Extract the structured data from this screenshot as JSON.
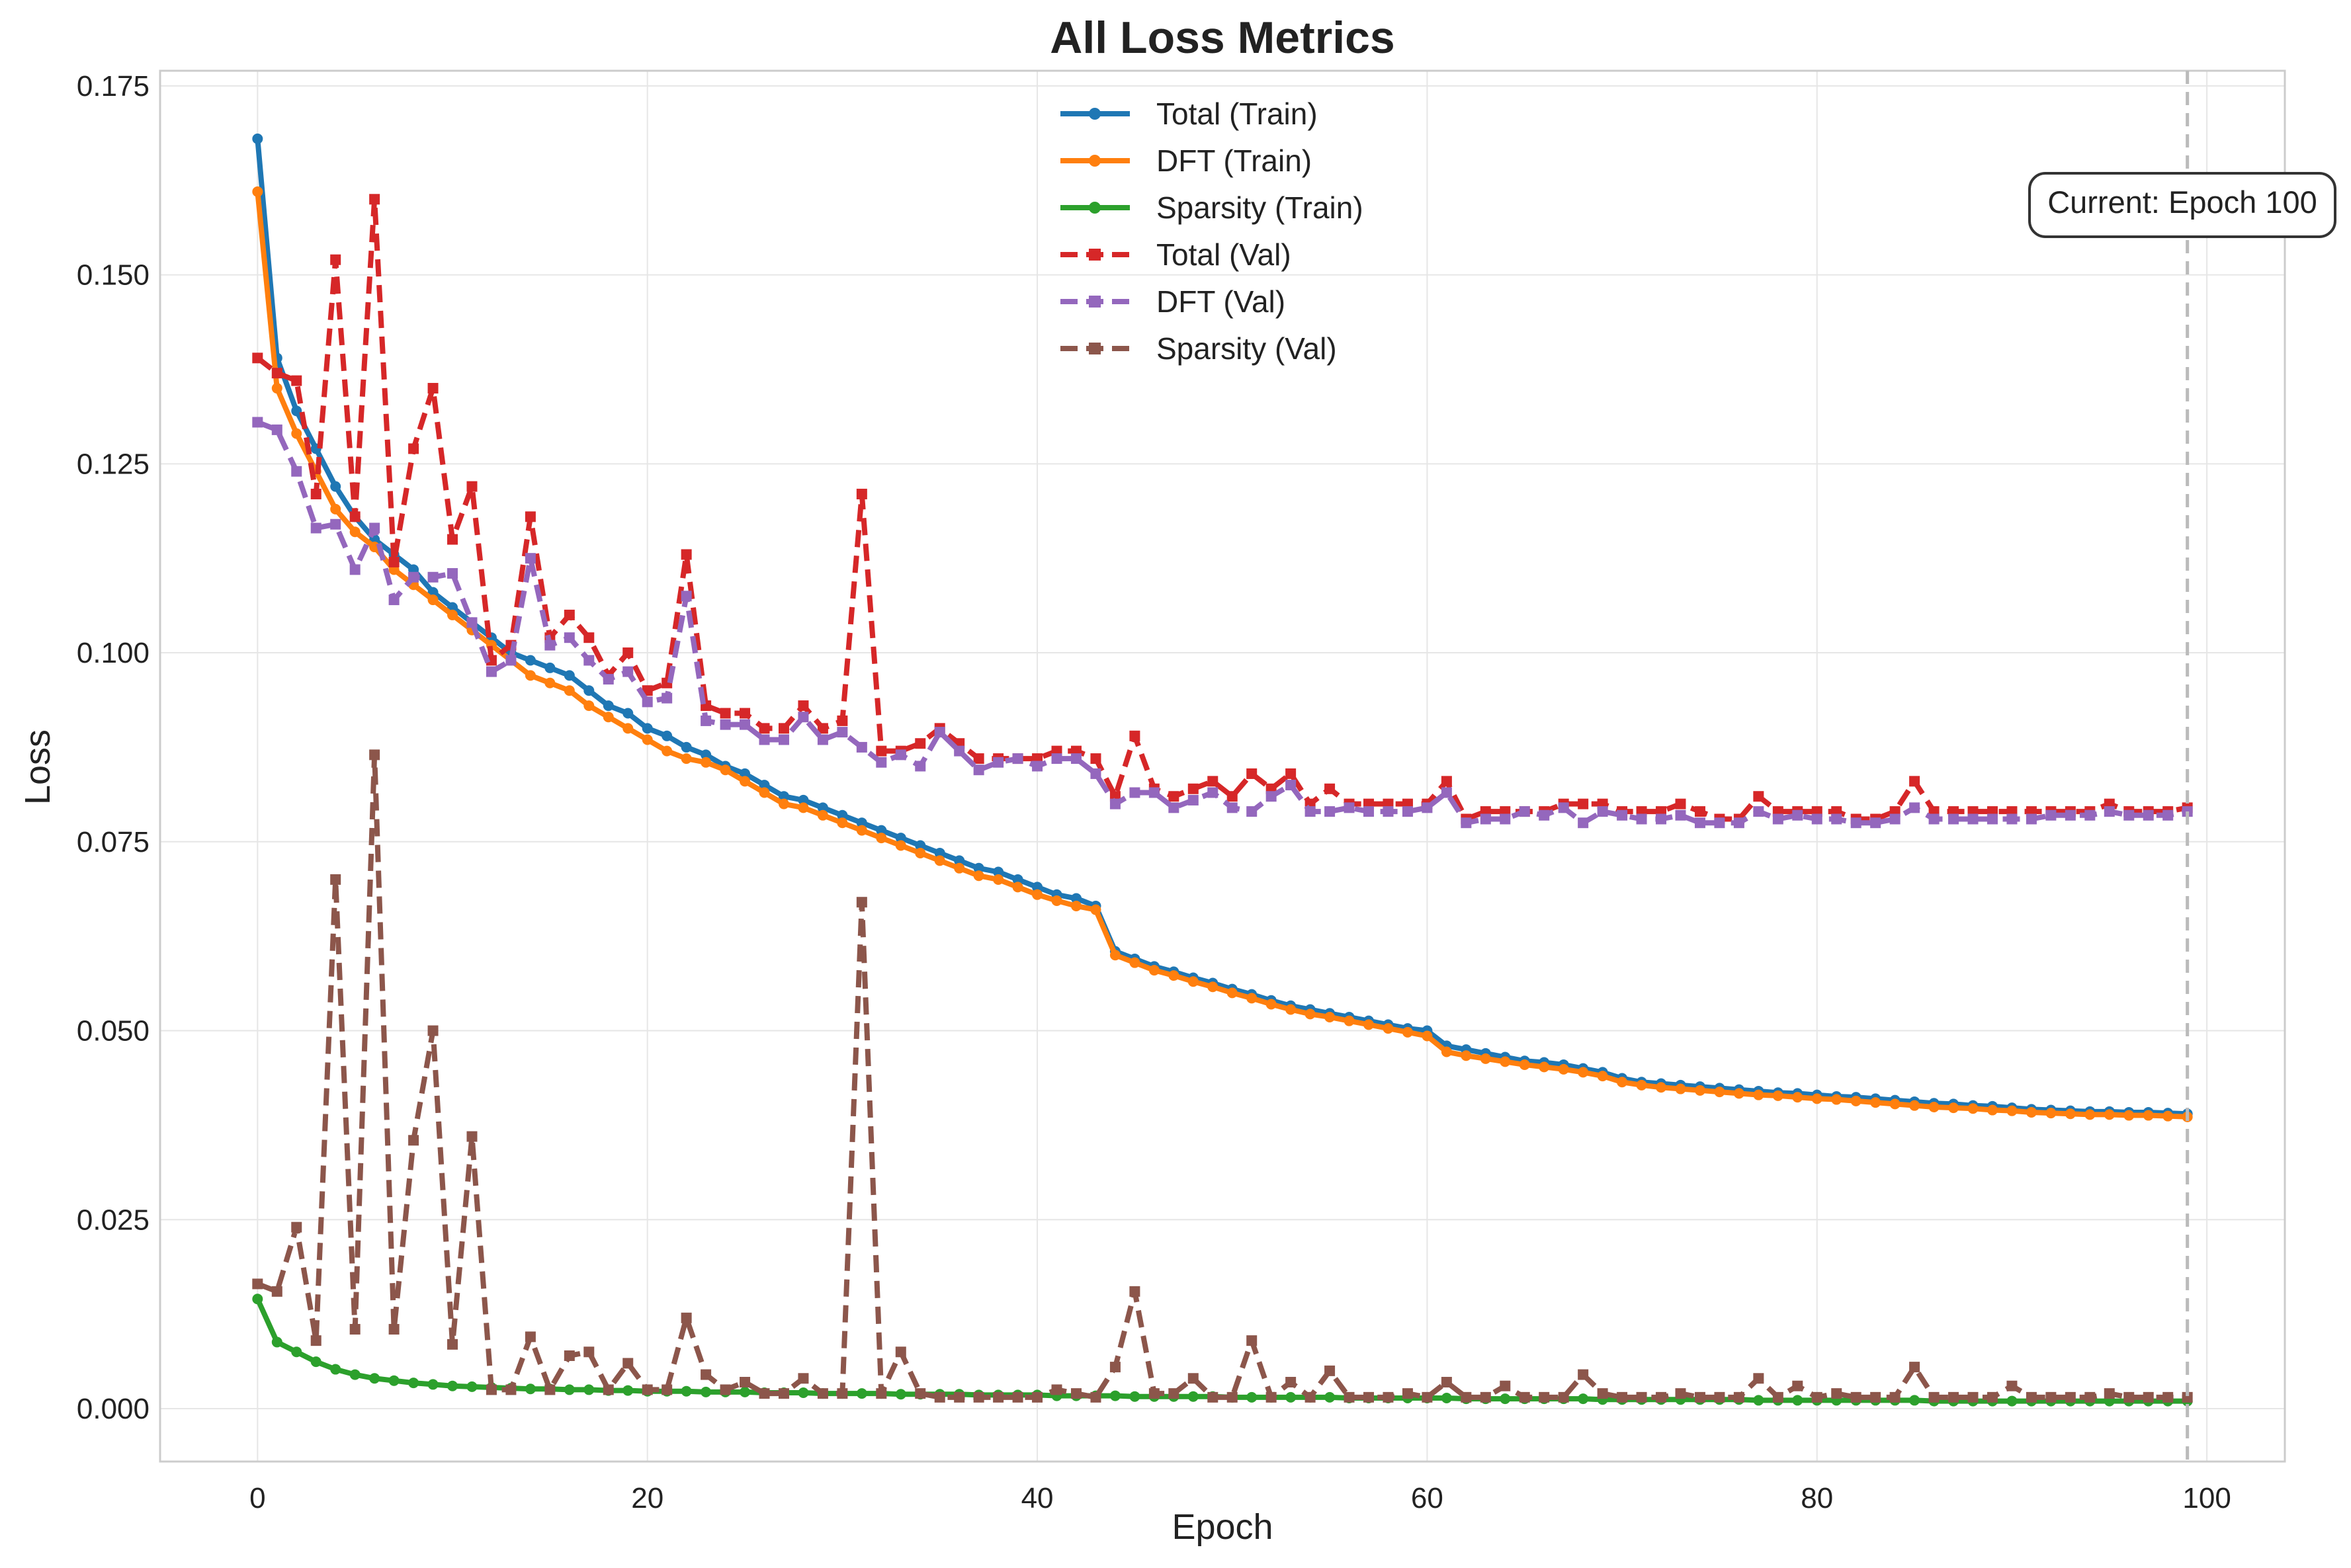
{
  "chart_data": {
    "type": "line",
    "title": "All Loss Metrics",
    "xlabel": "Epoch",
    "ylabel": "Loss",
    "xlim": [
      -5,
      104
    ],
    "ylim": [
      -0.007,
      0.177
    ],
    "xticks": [
      0,
      20,
      40,
      60,
      80,
      100
    ],
    "yticks": [
      0.0,
      0.025,
      0.05,
      0.075,
      0.1,
      0.125,
      0.15,
      0.175
    ],
    "xtick_labels": [
      "0",
      "20",
      "40",
      "60",
      "80",
      "100"
    ],
    "ytick_labels": [
      "0.000",
      "0.025",
      "0.050",
      "0.075",
      "0.100",
      "0.125",
      "0.150",
      "0.175"
    ],
    "grid": true,
    "legend_position": "top-center",
    "current_epoch_line": 99,
    "annotation": "Current: Epoch 100",
    "series": [
      {
        "name": "Total (Train)",
        "color": "#1f77b4",
        "style": "solid",
        "marker": "circle",
        "values": [
          0.168,
          0.139,
          0.132,
          0.127,
          0.122,
          0.118,
          0.115,
          0.113,
          0.111,
          0.108,
          0.106,
          0.104,
          0.102,
          0.1,
          0.099,
          0.098,
          0.097,
          0.095,
          0.093,
          0.092,
          0.09,
          0.089,
          0.0875,
          0.0865,
          0.085,
          0.084,
          0.0825,
          0.081,
          0.0805,
          0.0795,
          0.0785,
          0.0775,
          0.0765,
          0.0755,
          0.0745,
          0.0735,
          0.0725,
          0.0715,
          0.071,
          0.07,
          0.069,
          0.068,
          0.0675,
          0.0665,
          0.0605,
          0.0595,
          0.0585,
          0.0578,
          0.057,
          0.0563,
          0.0555,
          0.0548,
          0.054,
          0.0533,
          0.0528,
          0.0523,
          0.0518,
          0.0513,
          0.0508,
          0.0503,
          0.05,
          0.048,
          0.0475,
          0.047,
          0.0465,
          0.046,
          0.0458,
          0.0455,
          0.045,
          0.0445,
          0.0437,
          0.0432,
          0.043,
          0.0428,
          0.0426,
          0.0424,
          0.0422,
          0.042,
          0.0418,
          0.0417,
          0.0415,
          0.0413,
          0.0412,
          0.041,
          0.0408,
          0.0406,
          0.0404,
          0.0403,
          0.0401,
          0.04,
          0.0398,
          0.0396,
          0.0395,
          0.0394,
          0.0393,
          0.0393,
          0.0392,
          0.0392,
          0.0391,
          0.039
        ]
      },
      {
        "name": "DFT (Train)",
        "color": "#ff7f0e",
        "style": "solid",
        "marker": "circle",
        "values": [
          0.161,
          0.135,
          0.129,
          0.124,
          0.119,
          0.116,
          0.114,
          0.111,
          0.109,
          0.107,
          0.105,
          0.103,
          0.101,
          0.099,
          0.097,
          0.096,
          0.095,
          0.093,
          0.0915,
          0.09,
          0.0885,
          0.087,
          0.086,
          0.0855,
          0.0845,
          0.083,
          0.0815,
          0.08,
          0.0795,
          0.0785,
          0.0775,
          0.0765,
          0.0755,
          0.0745,
          0.0735,
          0.0725,
          0.0715,
          0.0705,
          0.07,
          0.069,
          0.068,
          0.0672,
          0.0665,
          0.066,
          0.06,
          0.059,
          0.058,
          0.0573,
          0.0565,
          0.0558,
          0.055,
          0.0543,
          0.0535,
          0.0528,
          0.0522,
          0.0518,
          0.0513,
          0.0508,
          0.0503,
          0.0498,
          0.0493,
          0.0472,
          0.0467,
          0.0463,
          0.0459,
          0.0455,
          0.0452,
          0.0449,
          0.0445,
          0.044,
          0.0432,
          0.0428,
          0.0425,
          0.0423,
          0.0421,
          0.0419,
          0.0417,
          0.0415,
          0.0414,
          0.0412,
          0.041,
          0.0409,
          0.0407,
          0.0405,
          0.0403,
          0.0401,
          0.0399,
          0.0398,
          0.0397,
          0.0395,
          0.0394,
          0.0392,
          0.0391,
          0.039,
          0.0389,
          0.0389,
          0.0388,
          0.0388,
          0.0387,
          0.0386
        ]
      },
      {
        "name": "Sparsity (Train)",
        "color": "#2ca02c",
        "style": "solid",
        "marker": "circle",
        "values": [
          0.0145,
          0.0088,
          0.0075,
          0.0062,
          0.0052,
          0.0045,
          0.004,
          0.0037,
          0.0034,
          0.0032,
          0.003,
          0.0029,
          0.0028,
          0.0027,
          0.0026,
          0.0026,
          0.0025,
          0.0025,
          0.0024,
          0.0024,
          0.0023,
          0.0023,
          0.0023,
          0.0022,
          0.0022,
          0.0022,
          0.0021,
          0.0021,
          0.0021,
          0.002,
          0.002,
          0.002,
          0.002,
          0.0019,
          0.0019,
          0.0019,
          0.0019,
          0.0018,
          0.0018,
          0.0018,
          0.0018,
          0.0017,
          0.0017,
          0.0017,
          0.0017,
          0.0016,
          0.0016,
          0.0016,
          0.0016,
          0.0016,
          0.0015,
          0.0015,
          0.0015,
          0.0015,
          0.0015,
          0.0015,
          0.0014,
          0.0014,
          0.0014,
          0.0014,
          0.0014,
          0.0014,
          0.0013,
          0.0013,
          0.0013,
          0.0013,
          0.0013,
          0.0013,
          0.0013,
          0.0012,
          0.0012,
          0.0012,
          0.0012,
          0.0012,
          0.0012,
          0.0012,
          0.0012,
          0.0011,
          0.0011,
          0.0011,
          0.0011,
          0.0011,
          0.0011,
          0.0011,
          0.0011,
          0.0011,
          0.001,
          0.001,
          0.001,
          0.001,
          0.001,
          0.001,
          0.001,
          0.001,
          0.001,
          0.001,
          0.001,
          0.001,
          0.001,
          0.001
        ]
      },
      {
        "name": "Total (Val)",
        "color": "#d62728",
        "style": "dashed",
        "marker": "square",
        "values": [
          0.139,
          0.137,
          0.136,
          0.121,
          0.152,
          0.118,
          0.16,
          0.112,
          0.127,
          0.135,
          0.115,
          0.122,
          0.099,
          0.101,
          0.118,
          0.102,
          0.105,
          0.102,
          0.097,
          0.1,
          0.095,
          0.096,
          0.113,
          0.093,
          0.092,
          0.092,
          0.09,
          0.09,
          0.093,
          0.09,
          0.091,
          0.121,
          0.087,
          0.087,
          0.088,
          0.09,
          0.088,
          0.086,
          0.086,
          0.086,
          0.086,
          0.087,
          0.087,
          0.086,
          0.081,
          0.089,
          0.082,
          0.081,
          0.082,
          0.083,
          0.081,
          0.084,
          0.082,
          0.084,
          0.08,
          0.082,
          0.08,
          0.08,
          0.08,
          0.08,
          0.08,
          0.083,
          0.078,
          0.079,
          0.079,
          0.079,
          0.079,
          0.08,
          0.08,
          0.08,
          0.079,
          0.079,
          0.079,
          0.08,
          0.079,
          0.078,
          0.078,
          0.081,
          0.079,
          0.079,
          0.079,
          0.079,
          0.078,
          0.078,
          0.079,
          0.083,
          0.079,
          0.079,
          0.079,
          0.079,
          0.079,
          0.079,
          0.079,
          0.079,
          0.079,
          0.08,
          0.079,
          0.079,
          0.079,
          0.0795
        ]
      },
      {
        "name": "DFT (Val)",
        "color": "#9467bd",
        "style": "dashed",
        "marker": "square",
        "values": [
          0.1305,
          0.1295,
          0.124,
          0.1165,
          0.117,
          0.111,
          0.1165,
          0.107,
          0.11,
          0.11,
          0.1105,
          0.104,
          0.0975,
          0.099,
          0.1125,
          0.101,
          0.102,
          0.099,
          0.0965,
          0.0975,
          0.0935,
          0.094,
          0.1075,
          0.091,
          0.0905,
          0.0905,
          0.0885,
          0.0885,
          0.0915,
          0.0885,
          0.0895,
          0.0875,
          0.0855,
          0.0865,
          0.085,
          0.0895,
          0.087,
          0.0845,
          0.0855,
          0.086,
          0.085,
          0.086,
          0.086,
          0.084,
          0.08,
          0.0815,
          0.0815,
          0.0795,
          0.0805,
          0.0815,
          0.0795,
          0.079,
          0.081,
          0.0825,
          0.079,
          0.079,
          0.0795,
          0.079,
          0.079,
          0.079,
          0.0795,
          0.0815,
          0.0775,
          0.078,
          0.078,
          0.079,
          0.0785,
          0.0795,
          0.0775,
          0.079,
          0.0785,
          0.078,
          0.078,
          0.0785,
          0.0775,
          0.0775,
          0.0775,
          0.079,
          0.078,
          0.0785,
          0.078,
          0.078,
          0.0775,
          0.0775,
          0.078,
          0.0795,
          0.078,
          0.078,
          0.078,
          0.078,
          0.078,
          0.078,
          0.0785,
          0.0785,
          0.0785,
          0.079,
          0.0785,
          0.0785,
          0.0785,
          0.079
        ]
      },
      {
        "name": "Sparsity (Val)",
        "color": "#8c564b",
        "style": "dashed",
        "marker": "square",
        "values": [
          0.0165,
          0.0155,
          0.024,
          0.009,
          0.07,
          0.0105,
          0.0865,
          0.0105,
          0.0355,
          0.05,
          0.0085,
          0.036,
          0.0025,
          0.0025,
          0.0095,
          0.0025,
          0.007,
          0.0075,
          0.0025,
          0.006,
          0.0025,
          0.0025,
          0.012,
          0.0045,
          0.0025,
          0.0035,
          0.002,
          0.002,
          0.004,
          0.002,
          0.002,
          0.067,
          0.002,
          0.0075,
          0.002,
          0.0015,
          0.0015,
          0.0015,
          0.0015,
          0.0015,
          0.0015,
          0.0025,
          0.002,
          0.0015,
          0.0055,
          0.0155,
          0.002,
          0.002,
          0.004,
          0.0015,
          0.0015,
          0.009,
          0.0015,
          0.0035,
          0.0015,
          0.005,
          0.0015,
          0.0015,
          0.0015,
          0.002,
          0.0015,
          0.0035,
          0.0015,
          0.0015,
          0.003,
          0.0015,
          0.0015,
          0.0015,
          0.0045,
          0.002,
          0.0015,
          0.0015,
          0.0015,
          0.002,
          0.0015,
          0.0015,
          0.0015,
          0.004,
          0.0015,
          0.003,
          0.0015,
          0.002,
          0.0015,
          0.0015,
          0.0015,
          0.0055,
          0.0015,
          0.0015,
          0.0015,
          0.0015,
          0.003,
          0.0015,
          0.0015,
          0.0015,
          0.0015,
          0.002,
          0.0015,
          0.0015,
          0.0015,
          0.0015
        ]
      }
    ]
  }
}
